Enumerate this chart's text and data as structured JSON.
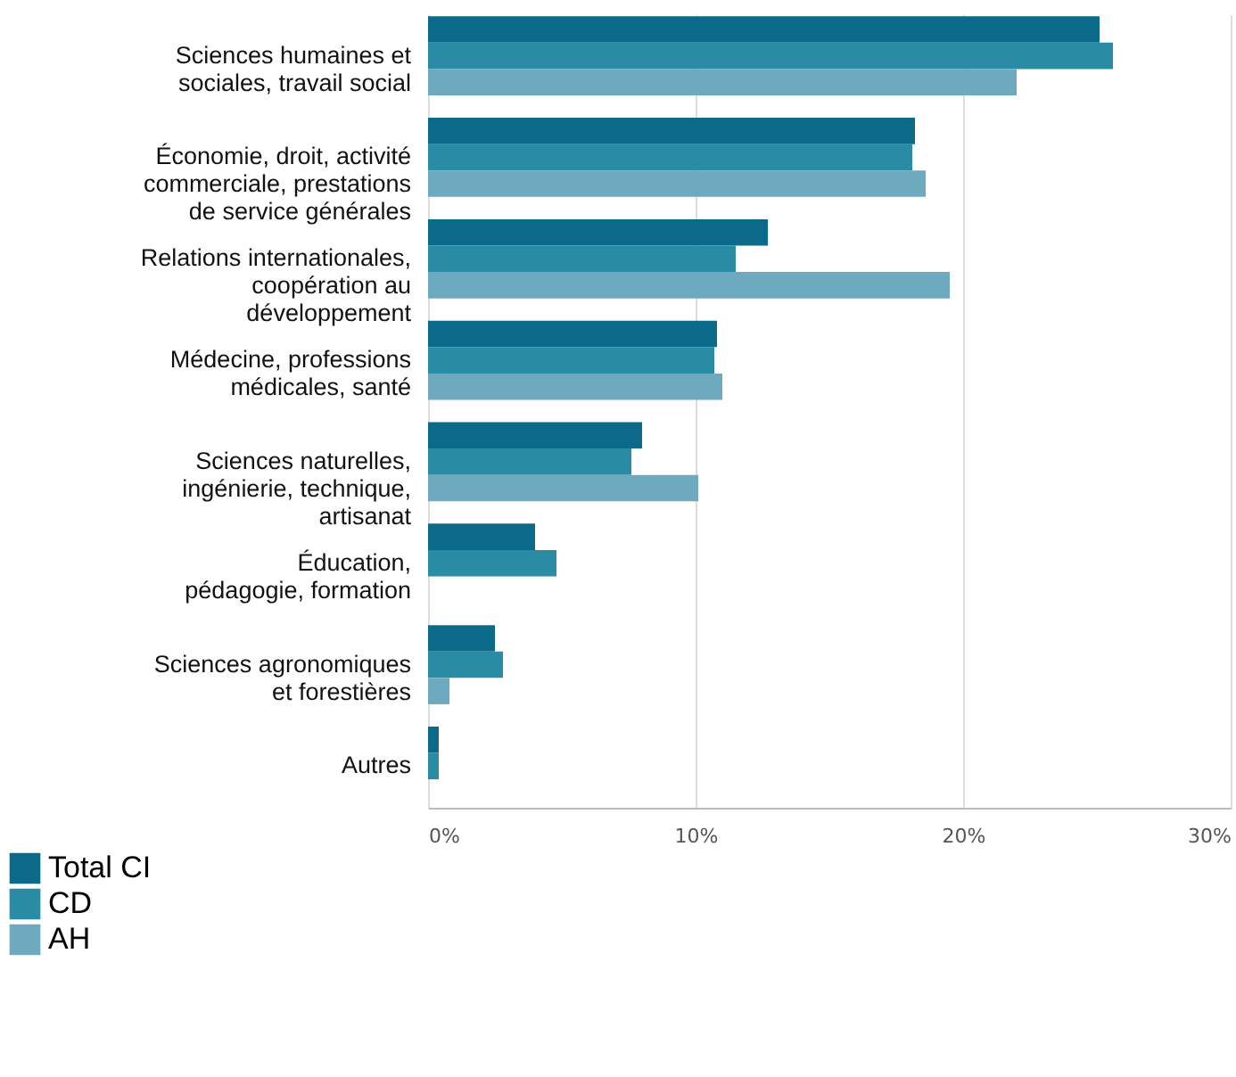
{
  "chart_data": {
    "type": "bar",
    "orientation": "horizontal",
    "categories": [
      "Sciences humaines et\nsociales, travail social",
      "Économie, droit, activité\ncommerciale, prestations\nde service générales",
      "Relations internationales,\ncoopération au\ndéveloppement",
      "Médecine, professions\nmédicales, santé",
      "Sciences naturelles,\ningénierie, technique,\nartisanat",
      "Éducation,\npédagogie, formation",
      "Sciences agronomiques\net forestières",
      "Autres"
    ],
    "series": [
      {
        "name": "Total CI",
        "color": "#0b6a8a",
        "values": [
          25.1,
          18.2,
          12.7,
          10.8,
          8.0,
          4.0,
          2.5,
          0.4
        ]
      },
      {
        "name": "CD",
        "color": "#2a8ca4",
        "values": [
          25.6,
          18.1,
          11.5,
          10.7,
          7.6,
          4.8,
          2.8,
          0.4
        ]
      },
      {
        "name": "AH",
        "color": "#6eaabf",
        "values": [
          22.0,
          18.6,
          19.5,
          11.0,
          10.1,
          0,
          0.8,
          0
        ]
      }
    ],
    "xlim": [
      0,
      30
    ],
    "xticks": [
      {
        "value": 0,
        "label": "0%"
      },
      {
        "value": 10,
        "label": "10%"
      },
      {
        "value": 20,
        "label": "20%"
      },
      {
        "value": 30,
        "label": "30%"
      }
    ],
    "grid": "x",
    "legend": "bottom left"
  }
}
